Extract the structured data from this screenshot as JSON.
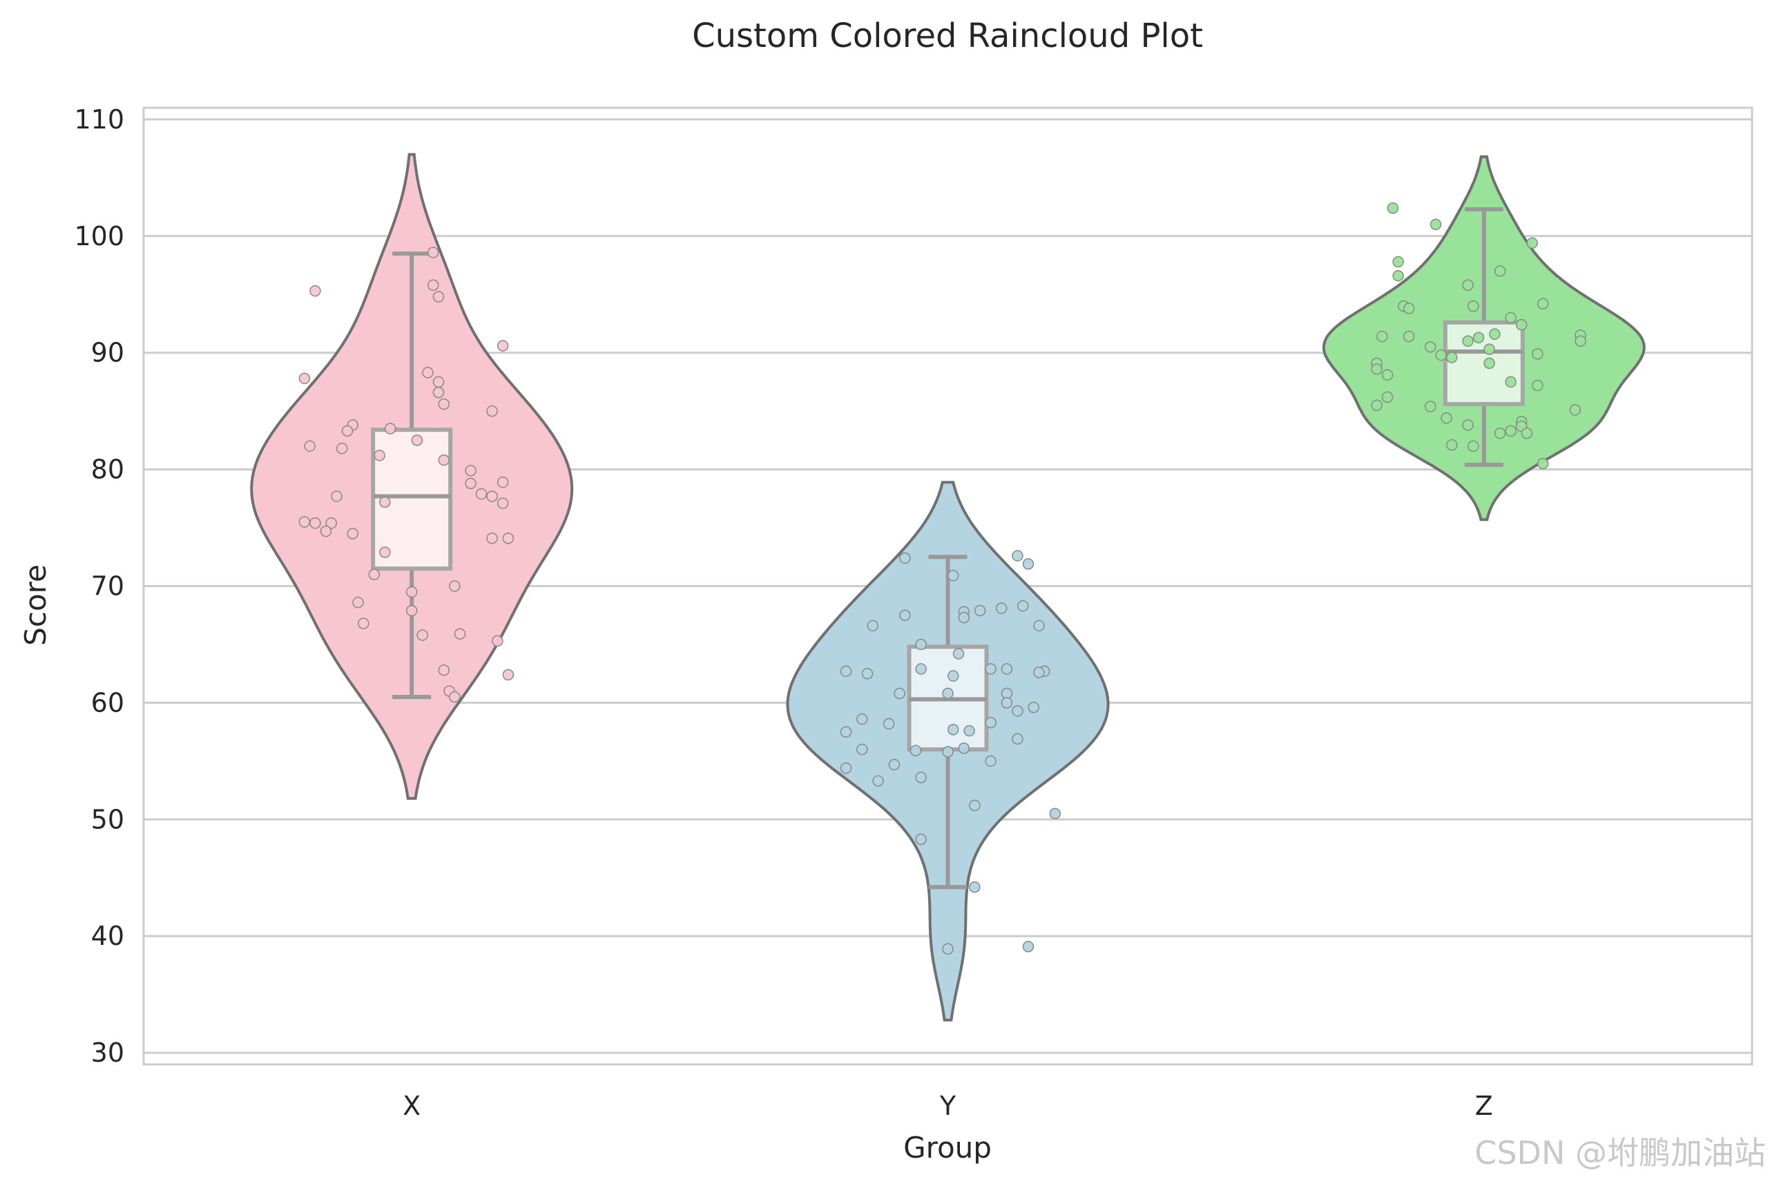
{
  "chart_data": {
    "type": "violin",
    "title": "Custom Colored Raincloud Plot",
    "xlabel": "Group",
    "ylabel": "Score",
    "ylim": [
      29,
      111
    ],
    "yticks": [
      30,
      40,
      50,
      60,
      70,
      80,
      90,
      100,
      110
    ],
    "categories": [
      "X",
      "Y",
      "Z"
    ],
    "grid": "horizontal",
    "series": [
      {
        "name": "X",
        "color": "#f7c6d0",
        "box": {
          "whisker_low": 60.5,
          "q1": 71.5,
          "median": 77.7,
          "q3": 83.4,
          "whisker_high": 98.5
        },
        "density_range": [
          51.8,
          107
        ],
        "points": [
          {
            "dx": -0.18,
            "y": 95.3
          },
          {
            "dx": 0.04,
            "y": 98.6
          },
          {
            "dx": 0.04,
            "y": 95.8
          },
          {
            "dx": 0.05,
            "y": 94.8
          },
          {
            "dx": 0.17,
            "y": 90.6
          },
          {
            "dx": -0.2,
            "y": 87.8
          },
          {
            "dx": 0.03,
            "y": 88.3
          },
          {
            "dx": 0.05,
            "y": 87.5
          },
          {
            "dx": 0.05,
            "y": 86.6
          },
          {
            "dx": 0.06,
            "y": 85.6
          },
          {
            "dx": 0.15,
            "y": 85.0
          },
          {
            "dx": -0.11,
            "y": 83.8
          },
          {
            "dx": -0.12,
            "y": 83.3
          },
          {
            "dx": -0.04,
            "y": 83.5
          },
          {
            "dx": 0.01,
            "y": 82.5
          },
          {
            "dx": -0.19,
            "y": 82.0
          },
          {
            "dx": -0.13,
            "y": 81.8
          },
          {
            "dx": -0.06,
            "y": 81.2
          },
          {
            "dx": 0.06,
            "y": 80.8
          },
          {
            "dx": 0.11,
            "y": 79.9
          },
          {
            "dx": 0.11,
            "y": 78.8
          },
          {
            "dx": 0.17,
            "y": 78.9
          },
          {
            "dx": 0.13,
            "y": 77.9
          },
          {
            "dx": 0.15,
            "y": 77.7
          },
          {
            "dx": -0.14,
            "y": 77.7
          },
          {
            "dx": -0.05,
            "y": 77.2
          },
          {
            "dx": 0.17,
            "y": 77.1
          },
          {
            "dx": -0.2,
            "y": 75.5
          },
          {
            "dx": -0.18,
            "y": 75.4
          },
          {
            "dx": -0.15,
            "y": 75.4
          },
          {
            "dx": -0.16,
            "y": 74.7
          },
          {
            "dx": -0.11,
            "y": 74.5
          },
          {
            "dx": 0.15,
            "y": 74.1
          },
          {
            "dx": 0.18,
            "y": 74.1
          },
          {
            "dx": -0.05,
            "y": 72.9
          },
          {
            "dx": -0.07,
            "y": 71.0
          },
          {
            "dx": 0.08,
            "y": 70.0
          },
          {
            "dx": 0.0,
            "y": 69.5
          },
          {
            "dx": -0.1,
            "y": 68.6
          },
          {
            "dx": 0.0,
            "y": 67.9
          },
          {
            "dx": -0.09,
            "y": 66.8
          },
          {
            "dx": 0.09,
            "y": 65.9
          },
          {
            "dx": 0.02,
            "y": 65.8
          },
          {
            "dx": 0.16,
            "y": 65.3
          },
          {
            "dx": 0.06,
            "y": 62.8
          },
          {
            "dx": 0.18,
            "y": 62.4
          },
          {
            "dx": 0.07,
            "y": 61.0
          },
          {
            "dx": 0.08,
            "y": 60.5
          }
        ]
      },
      {
        "name": "Y",
        "color": "#b3d4e0",
        "box": {
          "whisker_low": 44.2,
          "q1": 56.0,
          "median": 60.3,
          "q3": 64.8,
          "whisker_high": 72.5
        },
        "density_range": [
          32.8,
          78.9
        ],
        "points": [
          {
            "dx": -0.08,
            "y": 72.4
          },
          {
            "dx": 0.13,
            "y": 72.6
          },
          {
            "dx": 0.15,
            "y": 71.9
          },
          {
            "dx": 0.01,
            "y": 70.9
          },
          {
            "dx": -0.08,
            "y": 67.5
          },
          {
            "dx": 0.03,
            "y": 67.8
          },
          {
            "dx": 0.06,
            "y": 67.9
          },
          {
            "dx": 0.1,
            "y": 68.1
          },
          {
            "dx": 0.14,
            "y": 68.3
          },
          {
            "dx": 0.17,
            "y": 66.6
          },
          {
            "dx": -0.14,
            "y": 66.6
          },
          {
            "dx": 0.03,
            "y": 67.3
          },
          {
            "dx": -0.05,
            "y": 65.0
          },
          {
            "dx": 0.02,
            "y": 64.2
          },
          {
            "dx": -0.15,
            "y": 62.5
          },
          {
            "dx": -0.19,
            "y": 62.7
          },
          {
            "dx": -0.05,
            "y": 62.9
          },
          {
            "dx": 0.08,
            "y": 62.9
          },
          {
            "dx": 0.11,
            "y": 62.9
          },
          {
            "dx": 0.18,
            "y": 62.7
          },
          {
            "dx": 0.17,
            "y": 62.6
          },
          {
            "dx": 0.01,
            "y": 62.3
          },
          {
            "dx": -0.09,
            "y": 60.8
          },
          {
            "dx": 0.0,
            "y": 60.8
          },
          {
            "dx": 0.11,
            "y": 60.8
          },
          {
            "dx": 0.11,
            "y": 60.0
          },
          {
            "dx": 0.16,
            "y": 59.6
          },
          {
            "dx": 0.13,
            "y": 59.3
          },
          {
            "dx": -0.16,
            "y": 58.6
          },
          {
            "dx": -0.11,
            "y": 58.2
          },
          {
            "dx": 0.08,
            "y": 58.3
          },
          {
            "dx": 0.01,
            "y": 57.7
          },
          {
            "dx": 0.04,
            "y": 57.6
          },
          {
            "dx": -0.19,
            "y": 57.5
          },
          {
            "dx": -0.16,
            "y": 56.0
          },
          {
            "dx": -0.06,
            "y": 55.9
          },
          {
            "dx": 0.0,
            "y": 55.8
          },
          {
            "dx": 0.03,
            "y": 56.1
          },
          {
            "dx": 0.13,
            "y": 56.9
          },
          {
            "dx": 0.08,
            "y": 55.0
          },
          {
            "dx": -0.1,
            "y": 54.7
          },
          {
            "dx": -0.19,
            "y": 54.4
          },
          {
            "dx": -0.05,
            "y": 53.6
          },
          {
            "dx": -0.13,
            "y": 53.3
          },
          {
            "dx": 0.05,
            "y": 51.2
          },
          {
            "dx": 0.2,
            "y": 50.5
          },
          {
            "dx": -0.05,
            "y": 48.3
          },
          {
            "dx": 0.05,
            "y": 44.2
          },
          {
            "dx": 0.0,
            "y": 38.9
          },
          {
            "dx": 0.15,
            "y": 39.1
          }
        ]
      },
      {
        "name": "Z",
        "color": "#99e299",
        "box": {
          "whisker_low": 80.4,
          "q1": 85.6,
          "median": 90.1,
          "q3": 92.6,
          "whisker_high": 102.3
        },
        "density_range": [
          75.7,
          106.8
        ],
        "points": [
          {
            "dx": -0.17,
            "y": 102.4
          },
          {
            "dx": -0.09,
            "y": 101.0
          },
          {
            "dx": 0.09,
            "y": 99.4
          },
          {
            "dx": -0.16,
            "y": 97.8
          },
          {
            "dx": 0.03,
            "y": 97.0
          },
          {
            "dx": -0.16,
            "y": 96.6
          },
          {
            "dx": -0.03,
            "y": 95.8
          },
          {
            "dx": -0.15,
            "y": 94.0
          },
          {
            "dx": -0.14,
            "y": 93.8
          },
          {
            "dx": -0.02,
            "y": 94.0
          },
          {
            "dx": 0.11,
            "y": 94.2
          },
          {
            "dx": 0.05,
            "y": 93.0
          },
          {
            "dx": 0.07,
            "y": 92.4
          },
          {
            "dx": 0.02,
            "y": 91.6
          },
          {
            "dx": -0.19,
            "y": 91.4
          },
          {
            "dx": -0.14,
            "y": 91.4
          },
          {
            "dx": -0.01,
            "y": 91.3
          },
          {
            "dx": -0.03,
            "y": 91.0
          },
          {
            "dx": 0.18,
            "y": 91.5
          },
          {
            "dx": 0.18,
            "y": 91.0
          },
          {
            "dx": -0.1,
            "y": 90.5
          },
          {
            "dx": 0.01,
            "y": 90.3
          },
          {
            "dx": -0.08,
            "y": 89.8
          },
          {
            "dx": -0.06,
            "y": 89.6
          },
          {
            "dx": 0.1,
            "y": 89.9
          },
          {
            "dx": -0.2,
            "y": 89.1
          },
          {
            "dx": 0.01,
            "y": 89.1
          },
          {
            "dx": -0.2,
            "y": 88.6
          },
          {
            "dx": -0.18,
            "y": 88.1
          },
          {
            "dx": 0.05,
            "y": 87.5
          },
          {
            "dx": 0.1,
            "y": 87.2
          },
          {
            "dx": -0.18,
            "y": 86.2
          },
          {
            "dx": -0.2,
            "y": 85.5
          },
          {
            "dx": -0.1,
            "y": 85.4
          },
          {
            "dx": 0.17,
            "y": 85.1
          },
          {
            "dx": -0.07,
            "y": 84.4
          },
          {
            "dx": 0.07,
            "y": 84.1
          },
          {
            "dx": -0.03,
            "y": 83.8
          },
          {
            "dx": 0.07,
            "y": 83.7
          },
          {
            "dx": 0.05,
            "y": 83.3
          },
          {
            "dx": 0.03,
            "y": 83.1
          },
          {
            "dx": 0.08,
            "y": 83.1
          },
          {
            "dx": -0.06,
            "y": 82.1
          },
          {
            "dx": -0.02,
            "y": 82.0
          },
          {
            "dx": 0.11,
            "y": 80.5
          }
        ]
      }
    ]
  },
  "watermark": "CSDN @坿鹏加油站"
}
